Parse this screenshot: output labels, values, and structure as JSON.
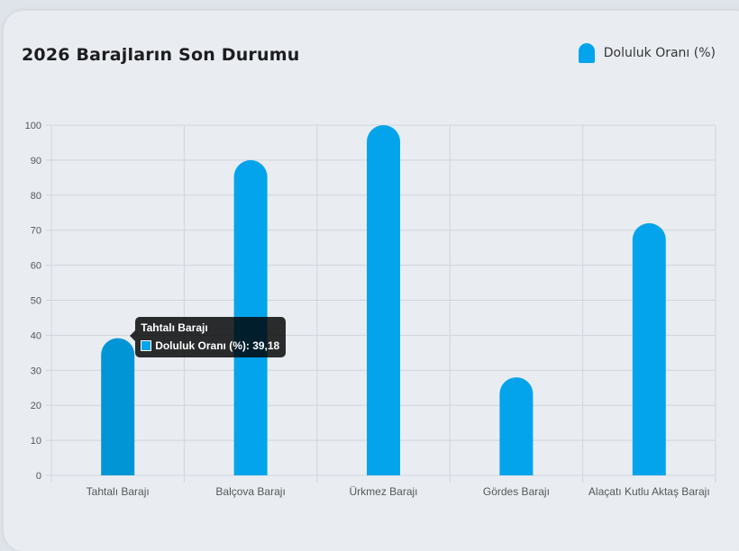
{
  "header": {
    "title": "2026 Barajların Son Durumu"
  },
  "legend": {
    "label": "Doluluk Oranı (%)"
  },
  "tooltip": {
    "title": "Tahtalı Barajı",
    "label": "Doluluk Oranı (%): 39,18",
    "index": 0
  },
  "colors": {
    "bar": "#03a4ec",
    "bar_hover": "#0295d6",
    "grid": "#cfd5dd",
    "tick_text": "#555555"
  },
  "chart_data": {
    "type": "bar",
    "title": "2026 Barajların Son Durumu",
    "categories": [
      "Tahtalı Barajı",
      "Balçova Barajı",
      "Ürkmez Barajı",
      "Gördes Barajı",
      "Alaçatı Kutlu Aktaş Barajı"
    ],
    "series": [
      {
        "name": "Doluluk Oranı (%)",
        "values": [
          39.18,
          90,
          100,
          28,
          72
        ]
      }
    ],
    "ylim": [
      0,
      100
    ],
    "yticks": [
      "0",
      "10",
      "20",
      "30",
      "40",
      "50",
      "60",
      "70",
      "80",
      "90",
      "100"
    ],
    "grid": true,
    "legend_position": "top-right"
  }
}
